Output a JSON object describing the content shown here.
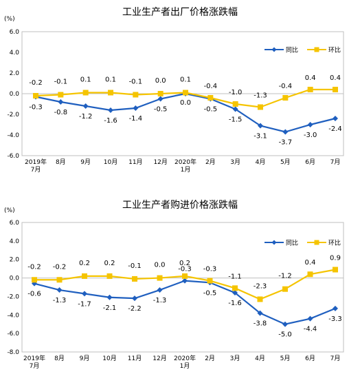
{
  "chart_data": [
    {
      "type": "line",
      "title": "工业生产者出厂价格涨跌幅",
      "unit": "(%)",
      "categories": [
        "2019年 7月",
        "8月",
        "9月",
        "10月",
        "11月",
        "12月",
        "2020年 1月",
        "2月",
        "3月",
        "4月",
        "5月",
        "6月",
        "7月"
      ],
      "ylim": [
        -6.0,
        6.0
      ],
      "yticks": [
        "6.0",
        "4.0",
        "2.0",
        "0.0",
        "-2.0",
        "-4.0",
        "-6.0"
      ],
      "legend_position": "top-right",
      "grid": false,
      "series": [
        {
          "name": "同比",
          "color": "#1f5fbf",
          "values": [
            -0.3,
            -0.8,
            -1.2,
            -1.6,
            -1.4,
            -0.5,
            0.0,
            -0.5,
            -1.5,
            -3.1,
            -3.7,
            -3.0,
            -2.4
          ],
          "labels": [
            "-0.3",
            "-0.8",
            "-1.2",
            "-1.6",
            "-1.4",
            "-0.5",
            "0.0",
            "-0.5",
            "-1.5",
            "-3.1",
            "-3.7",
            "-3.0",
            "-2.4"
          ]
        },
        {
          "name": "环比",
          "color": "#f5c400",
          "values": [
            -0.2,
            -0.1,
            0.1,
            0.1,
            -0.1,
            0.0,
            0.1,
            -0.4,
            -1.0,
            -1.3,
            -0.4,
            0.4,
            0.4
          ],
          "labels": [
            "-0.2",
            "-0.1",
            "0.1",
            "0.1",
            "-0.1",
            "0.0",
            "0.1",
            "-0.4",
            "-1.0",
            "-1.3",
            "-0.4",
            "0.4",
            "0.4"
          ]
        }
      ]
    },
    {
      "type": "line",
      "title": "工业生产者购进价格涨跌幅",
      "unit": "(%)",
      "categories": [
        "2019年 7月",
        "8月",
        "9月",
        "10月",
        "11月",
        "12月",
        "2020年 1月",
        "2月",
        "3月",
        "4月",
        "5月",
        "6月",
        "7月"
      ],
      "ylim": [
        -8.0,
        6.0
      ],
      "yticks": [
        "6.0",
        "4.0",
        "2.0",
        "0.0",
        "-2.0",
        "-4.0",
        "-6.0",
        "-8.0"
      ],
      "legend_position": "top-right",
      "grid": false,
      "series": [
        {
          "name": "同比",
          "color": "#1f5fbf",
          "values": [
            -0.6,
            -1.3,
            -1.7,
            -2.1,
            -2.2,
            -1.3,
            -0.3,
            -0.5,
            -1.6,
            -3.8,
            -5.0,
            -4.4,
            -3.3
          ],
          "labels": [
            "-0.6",
            "-1.3",
            "-1.7",
            "-2.1",
            "-2.2",
            "-1.3",
            "-0.3",
            "-0.5",
            "-1.6",
            "-3.8",
            "-5.0",
            "-4.4",
            "-3.3"
          ]
        },
        {
          "name": "环比",
          "color": "#f5c400",
          "values": [
            -0.2,
            -0.2,
            0.2,
            0.2,
            -0.1,
            0.0,
            0.2,
            -0.3,
            -1.1,
            -2.3,
            -1.2,
            0.4,
            0.9
          ],
          "labels": [
            "-0.2",
            "-0.2",
            "0.2",
            "0.2",
            "-0.1",
            "0.0",
            "0.2",
            "-0.3",
            "-1.1",
            "-2.3",
            "-1.2",
            "0.4",
            "0.9"
          ]
        }
      ]
    }
  ]
}
